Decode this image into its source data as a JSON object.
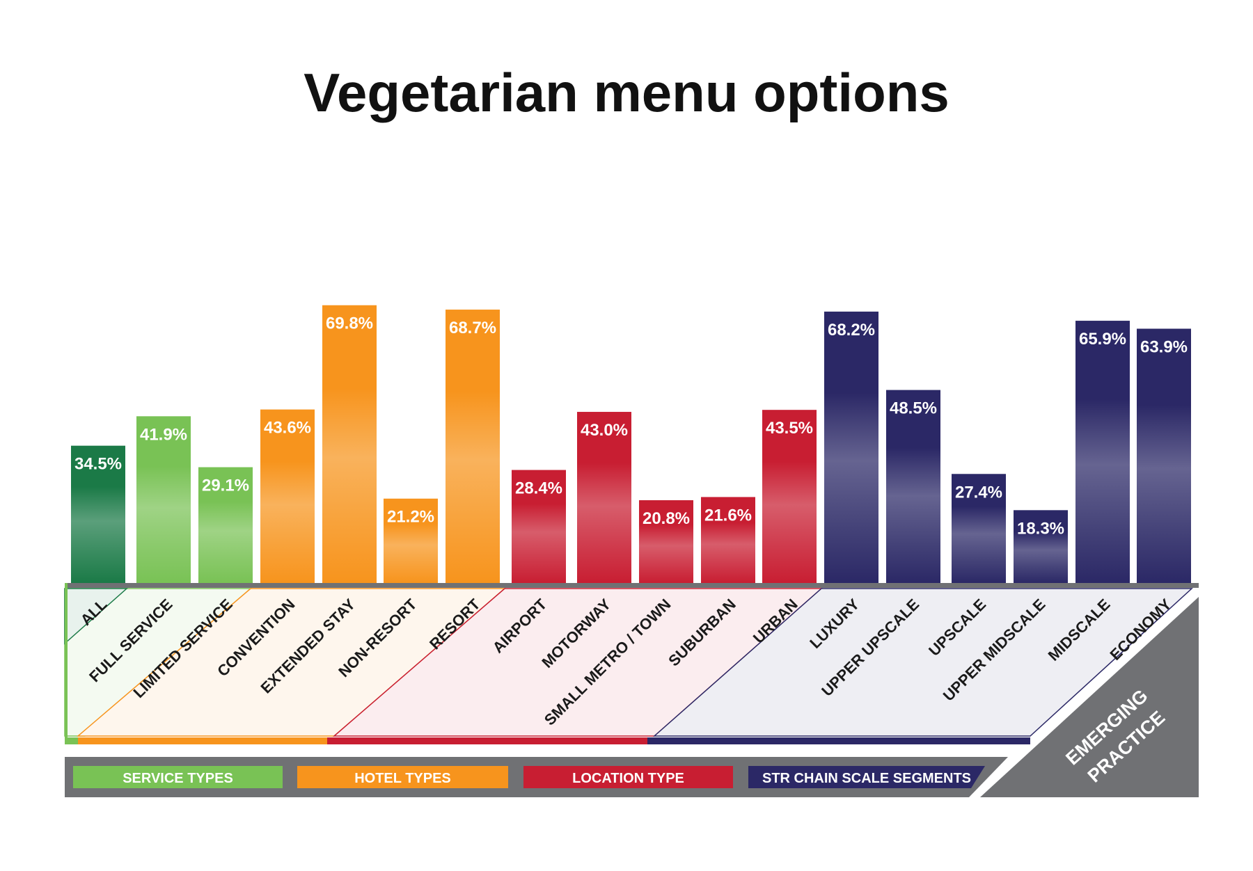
{
  "chart_data": {
    "type": "bar",
    "title": "Vegetarian menu options",
    "xlabel": "",
    "ylabel": "",
    "ylim": [
      0,
      100
    ],
    "grid": false,
    "categories": [
      "ALL",
      "FULL SERVICE",
      "LIMITED SERVICE",
      "CONVENTION",
      "EXTENDED STAY",
      "NON-RESORT",
      "RESORT",
      "AIRPORT",
      "MOTORWAY",
      "SMALL METRO / TOWN",
      "SUBURBAN",
      "URBAN",
      "LUXURY",
      "UPPER  UPSCALE",
      "UPSCALE",
      "UPPER  MIDSCALE",
      "MIDSCALE",
      "ECONOMY"
    ],
    "values": [
      34.5,
      41.9,
      29.1,
      43.6,
      69.8,
      21.2,
      68.7,
      28.4,
      43.0,
      20.8,
      21.6,
      43.5,
      68.2,
      48.5,
      27.4,
      18.3,
      65.9,
      63.9
    ],
    "value_labels": [
      "34.5%",
      "41.9%",
      "29.1%",
      "43.6%",
      "69.8%",
      "21.2%",
      "68.7%",
      "28.4%",
      "43.0%",
      "20.8%",
      "21.6%",
      "43.5%",
      "68.2%",
      "48.5%",
      "27.4%",
      "18.3%",
      "65.9%",
      "63.9%"
    ],
    "groups": [
      "all",
      "service",
      "service",
      "hotel",
      "hotel",
      "hotel",
      "hotel",
      "location",
      "location",
      "location",
      "location",
      "location",
      "str",
      "str",
      "str",
      "str",
      "str",
      "str"
    ],
    "legend": [
      {
        "key": "service",
        "label": "SERVICE TYPES"
      },
      {
        "key": "hotel",
        "label": "HOTEL TYPES"
      },
      {
        "key": "location",
        "label": "LOCATION TYPE"
      },
      {
        "key": "str",
        "label": "STR CHAIN SCALE SEGMENTS"
      }
    ],
    "annotation": [
      "EMERGING",
      "PRACTICE"
    ],
    "colors": {
      "all": "#1b7a47",
      "service": "#79c255",
      "hotel": "#f7941d",
      "location": "#c81e32",
      "str": "#2b2866",
      "emerging": "#707174",
      "axis": "#707174"
    }
  }
}
